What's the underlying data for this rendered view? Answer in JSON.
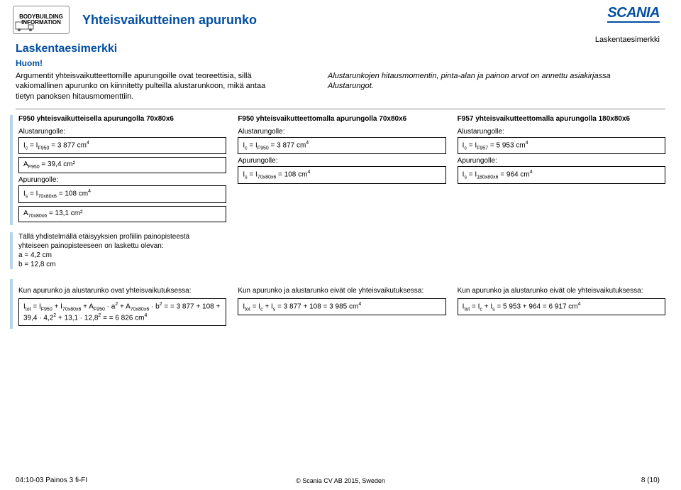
{
  "header": {
    "logo_line1": "BODYBUILDING",
    "logo_line2": "INFORMATION",
    "doc_title": "Yhteisvaikutteinen apurunko",
    "brand": "SCANIA",
    "right_label": "Laskentaesimerkki"
  },
  "section_title": "Laskentaesimerkki",
  "huom": "Huom!",
  "intro": {
    "left": "Argumentit yhteisvaikutteettomille apurungoille ovat teoreettisia, sillä vakiomallinen apurunko on kiinnitetty pulteilla alustarunkoon, mikä antaa tietyn panoksen hitausmomenttiin.",
    "right": "Alustarunkojen hitausmomentin, pinta-alan ja painon arvot on annettu asiakirjassa Alustarungot."
  },
  "col1": {
    "head": "F950 yhteisvaikutteisella apurungolla 70x80x6",
    "alusta_label": "Alustarungolle:",
    "f_ic": "I<sub>c</sub> = I<sub>F950</sub> = 3 877 cm<sup>4</sup>",
    "f_a": "A<sub>F950</sub> = 39,4 cm²",
    "apu_label": "Apurungolle:",
    "f_is": "I<sub>s</sub> = I<sub>70x80x6</sub> = 108 cm<sup>4</sup>",
    "f_as": "A<sub>70x80x6</sub> = 13,1 cm²"
  },
  "col2": {
    "head": "F950 yhteisvaikutteettomalla apurungolla 70x80x6",
    "alusta_label": "Alustarungolle:",
    "f_ic": "I<sub>c</sub> = I<sub>F950</sub> = 3 877 cm<sup>4</sup>",
    "apu_label": "Apurungolle:",
    "f_is": "I<sub>s</sub> = I<sub>70x80x6</sub> = 108 cm<sup>4</sup>"
  },
  "col3": {
    "head": "F957 yhteisvaikutteettomalla apurungolla 180x80x6",
    "alusta_label": "Alustarungolle:",
    "f_ic": "I<sub>c</sub> = I<sub>F957</sub> = 5 953 cm<sup>4</sup>",
    "apu_label": "Apurungolle:",
    "f_is": "I<sub>s</sub> = I<sub>180x80x6</sub> = 964 cm<sup>4</sup>"
  },
  "note": {
    "para": "Tällä yhdistelmällä etäisyyksien profiilin painopisteestä yhteiseen painopisteeseen on laskettu olevan:",
    "a": "a = 4,2 cm",
    "b": "b = 12,8 cm"
  },
  "fcol1": {
    "label": "Kun apurunko ja alustarunko ovat yhteisvaikutuksessa:",
    "formula": "I<sub>tot</sub> = I<sub>F950</sub> + I<sub>70x80x6</sub> + A<sub>F950</sub> · a<sup>2</sup> + A<sub>70x80x6</sub> · b<sup>2</sup> = = 3 877 + 108 + 39,4 · 4,2<sup>2</sup> + 13,1 · 12,8<sup>2</sup> = = 6 826 cm<sup>4</sup>"
  },
  "fcol2": {
    "label": "Kun apurunko ja alustarunko eivät ole yhteisvaikutuksessa:",
    "formula": "I<sub>tot</sub> = I<sub>c</sub> + I<sub>s</sub> = 3 877 + 108 = 3 985 cm<sup>4</sup>"
  },
  "fcol3": {
    "label": "Kun apurunko ja alustarunko eivät ole yhteisvaikutuksessa:",
    "formula": "I<sub>tot</sub> = I<sub>c</sub> + I<sub>s</sub> = 5 953 + 964 = 6 917 cm<sup>4</sup>"
  },
  "footer": {
    "left": "04:10-03 Painos 3 fi-FI",
    "right": "8 (10)",
    "copyright": "© Scania CV AB 2015, Sweden"
  },
  "colors": {
    "brand_blue": "#034ea2",
    "bar_blue": "#b9d4ea"
  }
}
